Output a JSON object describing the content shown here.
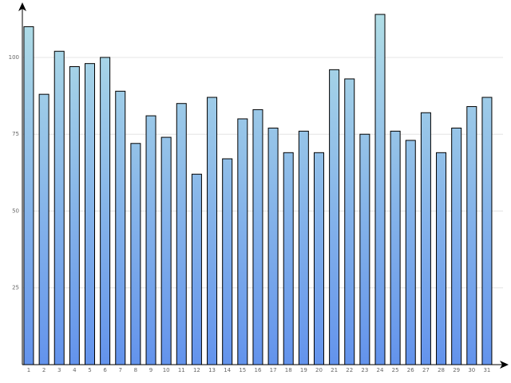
{
  "chart_data": {
    "type": "bar",
    "categories": [
      "1",
      "2",
      "3",
      "4",
      "5",
      "6",
      "7",
      "8",
      "9",
      "10",
      "11",
      "12",
      "13",
      "14",
      "15",
      "16",
      "17",
      "18",
      "19",
      "20",
      "21",
      "22",
      "23",
      "24",
      "25",
      "26",
      "27",
      "28",
      "29",
      "30",
      "31"
    ],
    "values": [
      110,
      88,
      102,
      97,
      98,
      100,
      89,
      72,
      81,
      74,
      85,
      62,
      87,
      67,
      80,
      83,
      77,
      69,
      76,
      69,
      96,
      93,
      75,
      114,
      76,
      73,
      82,
      69,
      77,
      84,
      87
    ],
    "ylim": [
      0,
      117
    ],
    "yticks": [
      25,
      50,
      75,
      100
    ],
    "grid": true
  }
}
